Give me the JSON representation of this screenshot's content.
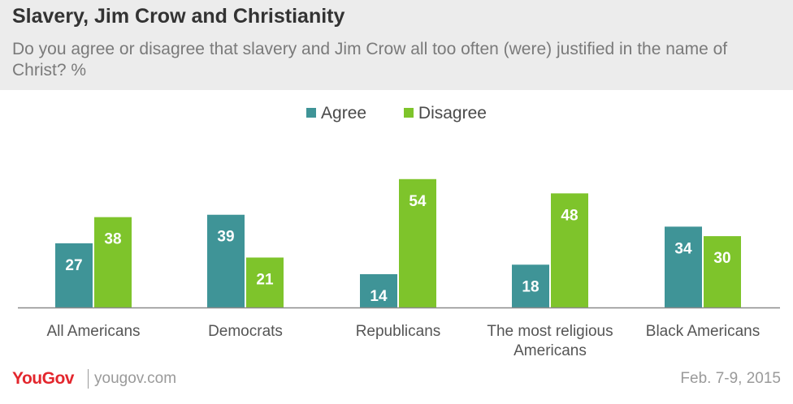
{
  "title": "Slavery, Jim Crow and Christianity",
  "subtitle": "Do you agree or disagree that slavery and Jim Crow all too often (were) justified in the name of Christ? %",
  "footer": {
    "logo": "YouGov",
    "url": "yougov.com",
    "date": "Feb. 7-9, 2015"
  },
  "colors": {
    "agree": "#3f9497",
    "disagree": "#7ec42b",
    "axis": "#8a8a8a",
    "label": "#555555",
    "brand": "#e3262d"
  },
  "chart_data": {
    "type": "bar",
    "categories": [
      [
        "All Americans"
      ],
      [
        "Democrats"
      ],
      [
        "Republicans"
      ],
      [
        "The most religious",
        "Americans"
      ],
      [
        "Black Americans"
      ]
    ],
    "series": [
      {
        "name": "Agree",
        "values": [
          27,
          39,
          14,
          18,
          34
        ]
      },
      {
        "name": "Disagree",
        "values": [
          38,
          21,
          54,
          48,
          30
        ]
      }
    ],
    "ylim": [
      0,
      60
    ],
    "grid": false,
    "legend": "top-center",
    "xlabel": "",
    "ylabel": ""
  }
}
